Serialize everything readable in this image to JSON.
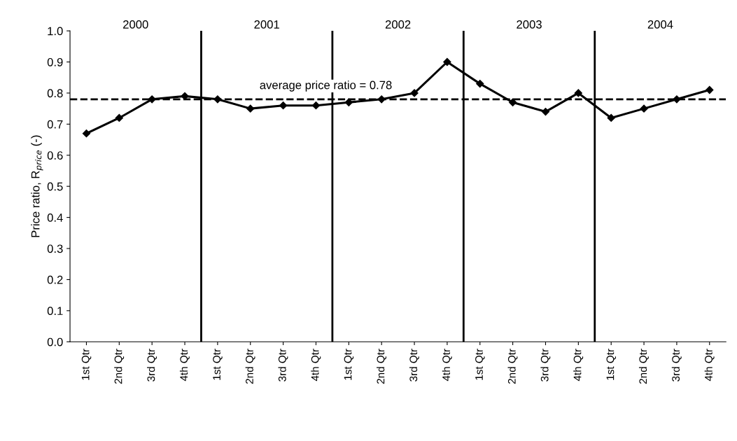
{
  "chart_data": {
    "type": "line",
    "ylabel": "Price ratio, R$_{price}$ (-)",
    "categories": [
      "1st Qtr",
      "2nd Qtr",
      "3rd Qtr",
      "4th Qtr",
      "1st Qtr",
      "2nd Qtr",
      "3rd Qtr",
      "4th Qtr",
      "1st Qtr",
      "2nd Qtr",
      "3rd Qtr",
      "4th Qtr",
      "1st Qtr",
      "2nd Qtr",
      "3rd Qtr",
      "4th Qtr",
      "1st Qtr",
      "2nd Qtr",
      "3rd Qtr",
      "4th Qtr"
    ],
    "series": [
      {
        "color": "#000000",
        "values": [
          0.67,
          0.72,
          0.78,
          0.79,
          0.78,
          0.75,
          0.76,
          0.76,
          0.77,
          0.78,
          0.8,
          0.9,
          0.83,
          0.77,
          0.74,
          0.8,
          0.72,
          0.75,
          0.78,
          0.81
        ]
      }
    ],
    "ylim": [
      0,
      1.0
    ],
    "yticks": [
      {
        "value": 0,
        "label": "0.0"
      },
      0.1,
      0.2,
      0.3,
      0.4,
      0.5,
      0.6,
      0.7,
      0.8,
      0.9,
      {
        "value": 1.0,
        "label": "1.0"
      }
    ],
    "ref_lines": [
      {
        "axis": "y",
        "value": 0.78,
        "label": "average price ratio = 0.78",
        "line_style": "dashed",
        "color": "#000000"
      }
    ],
    "annotations": [
      "2000",
      "2001",
      "2002",
      "2003",
      "2004"
    ],
    "marker": "diamond",
    "line_style": "solid",
    "grid": false,
    "legend": false
  }
}
